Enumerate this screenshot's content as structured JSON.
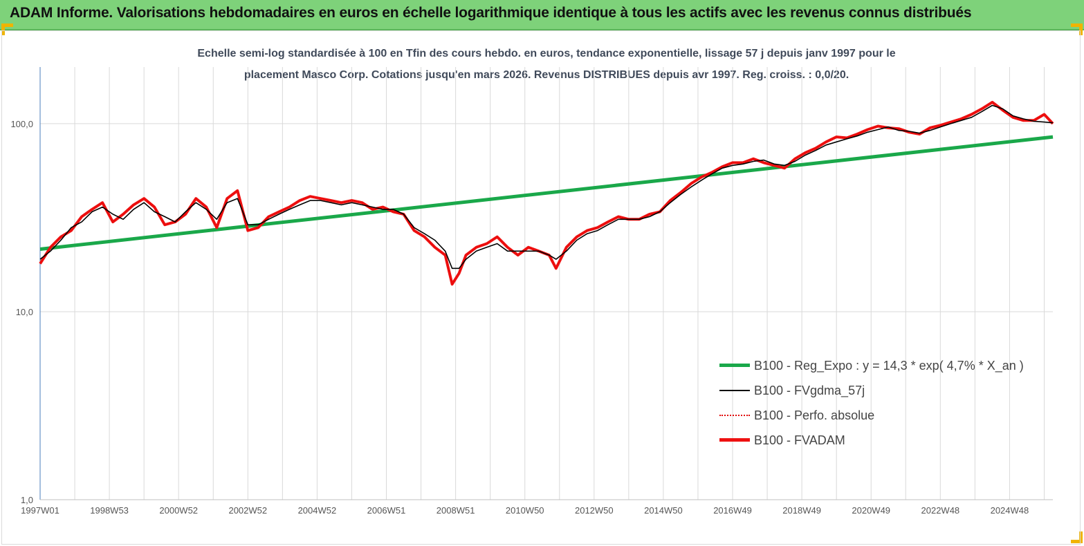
{
  "header": {
    "title": "ADAM Informe. Valorisations hebdomadaires en euros en échelle logarithmique identique à tous les actifs avec les revenus connus distribués"
  },
  "colors": {
    "header_bg": "#7ed27a",
    "regression": "#1aa84a",
    "smoothed": "#000000",
    "perf": "#e00000",
    "fvadam": "#ee1111"
  },
  "chart_data": {
    "type": "line",
    "title_line1": "Echelle semi-log standardisée à 100 en Tfin des cours hebdo. en euros, tendance exponentielle, lissage 57 j depuis janv 1997 pour le",
    "title_line2": "placement Masco Corp. Cotations jusqu'en mars 2026. Revenus DISTRIBUES depuis avr 1997. Reg. croiss. : 0,0/20.",
    "y_scale": "log",
    "ylim": [
      1,
      200
    ],
    "y_ticks": [
      {
        "value": 1,
        "label": "1,0"
      },
      {
        "value": 10,
        "label": "10,0"
      },
      {
        "value": 100,
        "label": "100,0"
      }
    ],
    "x_range": [
      1997.0,
      2026.25
    ],
    "x_ticks": [
      {
        "x": 1997.0,
        "label": "1997W01"
      },
      {
        "x": 1999.0,
        "label": "1998W53"
      },
      {
        "x": 2001.0,
        "label": "2000W52"
      },
      {
        "x": 2003.0,
        "label": "2002W52"
      },
      {
        "x": 2005.0,
        "label": "2004W52"
      },
      {
        "x": 2007.0,
        "label": "2006W51"
      },
      {
        "x": 2009.0,
        "label": "2008W51"
      },
      {
        "x": 2011.0,
        "label": "2010W50"
      },
      {
        "x": 2013.0,
        "label": "2012W50"
      },
      {
        "x": 2015.0,
        "label": "2014W50"
      },
      {
        "x": 2017.0,
        "label": "2016W49"
      },
      {
        "x": 2019.0,
        "label": "2018W49"
      },
      {
        "x": 2021.0,
        "label": "2020W49"
      },
      {
        "x": 2023.0,
        "label": "2022W48"
      },
      {
        "x": 2025.0,
        "label": "2024W48"
      }
    ],
    "grid": "vertical",
    "legend_position": "bottom-right",
    "series": [
      {
        "name": "B100 - Reg_Expo : y = 14,3 * exp( 4,7% *  X_an )",
        "style": "thick-green",
        "x": [
          1997.0,
          2026.25
        ],
        "y": [
          21.5,
          85.0
        ]
      },
      {
        "name": "B100 - FVgdma_57j",
        "style": "thin-black",
        "x": [
          1997.0,
          1997.3,
          1997.6,
          1997.9,
          1998.2,
          1998.5,
          1998.8,
          1999.1,
          1999.4,
          1999.7,
          2000.0,
          2000.3,
          2000.6,
          2000.9,
          2001.2,
          2001.5,
          2001.8,
          2002.1,
          2002.4,
          2002.7,
          2003.0,
          2003.3,
          2003.6,
          2003.9,
          2004.2,
          2004.5,
          2004.8,
          2005.1,
          2005.4,
          2005.7,
          2006.0,
          2006.3,
          2006.6,
          2006.9,
          2007.2,
          2007.5,
          2007.8,
          2008.1,
          2008.4,
          2008.7,
          2008.9,
          2009.1,
          2009.3,
          2009.6,
          2009.9,
          2010.2,
          2010.5,
          2010.8,
          2011.1,
          2011.4,
          2011.7,
          2011.9,
          2012.2,
          2012.5,
          2012.8,
          2013.1,
          2013.4,
          2013.7,
          2014.0,
          2014.3,
          2014.6,
          2014.9,
          2015.2,
          2015.5,
          2015.8,
          2016.1,
          2016.4,
          2016.7,
          2017.0,
          2017.3,
          2017.6,
          2017.9,
          2018.2,
          2018.5,
          2018.8,
          2019.1,
          2019.4,
          2019.7,
          2020.0,
          2020.3,
          2020.6,
          2020.9,
          2021.2,
          2021.5,
          2021.8,
          2022.1,
          2022.4,
          2022.7,
          2023.0,
          2023.3,
          2023.6,
          2023.9,
          2024.2,
          2024.5,
          2024.8,
          2025.1,
          2025.4,
          2025.7,
          2026.0,
          2026.25
        ],
        "y": [
          19,
          21,
          24,
          28,
          30,
          34,
          36,
          33,
          31,
          35,
          38,
          34,
          32,
          30,
          34,
          38,
          35,
          31,
          38,
          40,
          29,
          29,
          31,
          33,
          35,
          37,
          39,
          39,
          38,
          37,
          38,
          37,
          36,
          35,
          35,
          33,
          28,
          26,
          24,
          21,
          17,
          17,
          19,
          21,
          22,
          23,
          21,
          21,
          21,
          21,
          20,
          19,
          21,
          24,
          26,
          27,
          29,
          31,
          31,
          31,
          32,
          34,
          38,
          42,
          46,
          50,
          54,
          58,
          60,
          61,
          63,
          64,
          61,
          60,
          63,
          68,
          72,
          77,
          80,
          83,
          86,
          90,
          93,
          96,
          92,
          91,
          89,
          92,
          96,
          100,
          104,
          108,
          116,
          125,
          120,
          110,
          106,
          103,
          102,
          101
        ]
      },
      {
        "name": "B100 - Perfo. absolue",
        "style": "dotted-red"
      },
      {
        "name": "B100 - FVADAM",
        "style": "thick-red",
        "x": [
          1997.0,
          1997.3,
          1997.6,
          1997.9,
          1998.2,
          1998.5,
          1998.8,
          1999.1,
          1999.4,
          1999.7,
          2000.0,
          2000.3,
          2000.6,
          2000.9,
          2001.2,
          2001.5,
          2001.8,
          2002.1,
          2002.4,
          2002.7,
          2003.0,
          2003.3,
          2003.6,
          2003.9,
          2004.2,
          2004.5,
          2004.8,
          2005.1,
          2005.4,
          2005.7,
          2006.0,
          2006.3,
          2006.6,
          2006.9,
          2007.2,
          2007.5,
          2007.8,
          2008.1,
          2008.4,
          2008.7,
          2008.9,
          2009.1,
          2009.3,
          2009.6,
          2009.9,
          2010.2,
          2010.5,
          2010.8,
          2011.1,
          2011.4,
          2011.7,
          2011.9,
          2012.2,
          2012.5,
          2012.8,
          2013.1,
          2013.4,
          2013.7,
          2014.0,
          2014.3,
          2014.6,
          2014.9,
          2015.2,
          2015.5,
          2015.8,
          2016.1,
          2016.4,
          2016.7,
          2017.0,
          2017.3,
          2017.6,
          2017.9,
          2018.2,
          2018.5,
          2018.8,
          2019.1,
          2019.4,
          2019.7,
          2020.0,
          2020.3,
          2020.6,
          2020.9,
          2021.2,
          2021.5,
          2021.8,
          2022.1,
          2022.4,
          2022.7,
          2023.0,
          2023.3,
          2023.6,
          2023.9,
          2024.2,
          2024.5,
          2024.8,
          2025.1,
          2025.4,
          2025.7,
          2026.0,
          2026.25
        ],
        "y": [
          18,
          22,
          25,
          27,
          32,
          35,
          38,
          30,
          33,
          37,
          40,
          36,
          29,
          30,
          33,
          40,
          36,
          28,
          40,
          44,
          27,
          28,
          32,
          34,
          36,
          39,
          41,
          40,
          39,
          38,
          39,
          38,
          35,
          36,
          34,
          33,
          27,
          25,
          22,
          20,
          14,
          16,
          20,
          22,
          23,
          25,
          22,
          20,
          22,
          21,
          20,
          17,
          22,
          25,
          27,
          28,
          30,
          32,
          31,
          31,
          33,
          34,
          39,
          43,
          48,
          52,
          55,
          59,
          62,
          62,
          65,
          62,
          60,
          58,
          65,
          70,
          74,
          80,
          85,
          84,
          88,
          93,
          97,
          95,
          94,
          90,
          88,
          95,
          98,
          102,
          106,
          112,
          120,
          130,
          118,
          108,
          104,
          104,
          112,
          100
        ]
      }
    ]
  }
}
